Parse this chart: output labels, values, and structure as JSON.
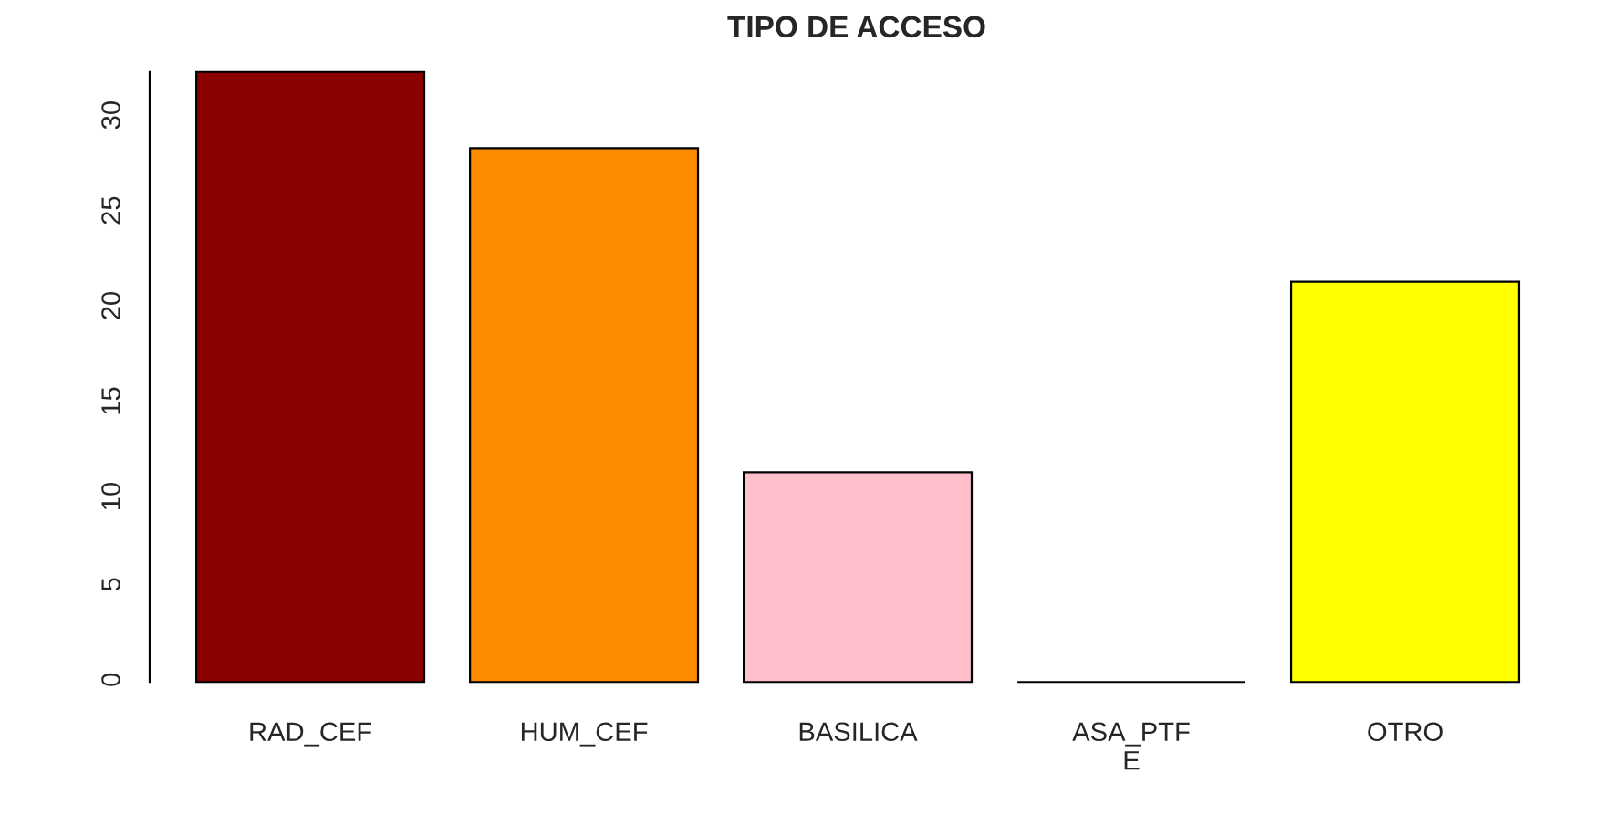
{
  "chart_data": {
    "type": "bar",
    "title": "TIPO DE ACCESO",
    "categories": [
      "RAD_CEF",
      "HUM_CEF",
      "BASILICA",
      "ASA_PTF\nE",
      "OTRO"
    ],
    "values": [
      32,
      28,
      11,
      0,
      21
    ],
    "colors": [
      "#8b0000",
      "#ff8c00",
      "#ffc0cb",
      "#000000",
      "#ffff00"
    ],
    "ylim": [
      0,
      32
    ],
    "yticks": [
      0,
      5,
      10,
      15,
      20,
      25,
      30
    ],
    "grid": false,
    "legend": false
  }
}
